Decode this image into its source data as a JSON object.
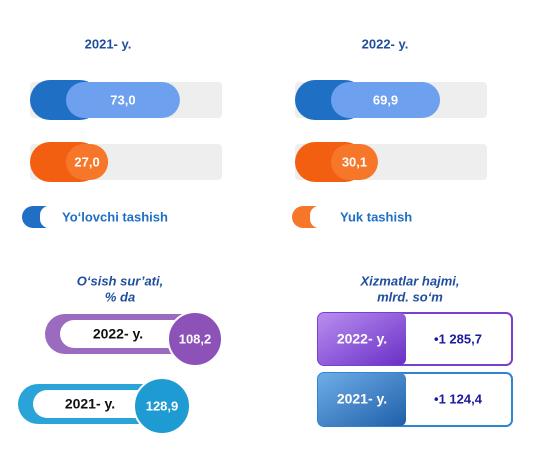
{
  "share": {
    "charts": [
      {
        "title": "2021- y.",
        "values": [
          73.0,
          27.0
        ],
        "value_labels": [
          "73,0",
          "27,0"
        ]
      },
      {
        "title": "2022- y.",
        "values": [
          69.9,
          30.1
        ],
        "value_labels": [
          "69,9",
          "30,1"
        ]
      }
    ],
    "legend": [
      "Yo‘lovchi tashish",
      "Yuk tashish"
    ],
    "colors": [
      "#6ea0f0",
      "#f7772a"
    ],
    "xlim": [
      0,
      100
    ]
  },
  "growth": {
    "title_lines": [
      "O‘sish sur’ati,",
      "% da"
    ],
    "rows": [
      {
        "label": "2022- y.",
        "value": "108,2"
      },
      {
        "label": "2021- y.",
        "value": "128,9"
      }
    ]
  },
  "services": {
    "title_lines": [
      "Xizmatlar hajmi,",
      "mlrd. so‘m"
    ],
    "rows": [
      {
        "label": "2022- y.",
        "value": "•1 285,7"
      },
      {
        "label": "2021- y.",
        "value": "•1 124,4"
      }
    ]
  }
}
